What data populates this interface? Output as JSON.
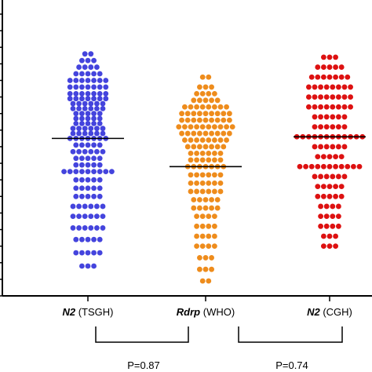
{
  "chart_data": {
    "type": "scatter",
    "subtype": "swarm",
    "title": "",
    "xlabel": "",
    "ylabel": "",
    "categories": [
      {
        "gene": "N2",
        "suffix": " (TSGH)",
        "color": "#4444dd"
      },
      {
        "gene": "Rdrp",
        "suffix": " (WHO)",
        "color": "#ee8c1c"
      },
      {
        "gene": "N2",
        "suffix": " (CGH)",
        "color": "#dd1111"
      }
    ],
    "ylim": [
      0,
      17
    ],
    "y_tick_count": 17,
    "series": [
      {
        "category": 0,
        "median": 9.5,
        "values": [
          1.8,
          2.6,
          3.4,
          4.1,
          4.8,
          5.4,
          6.0,
          6.5,
          7.0,
          7.5,
          7.9,
          8.3,
          8.7,
          9.1,
          9.5,
          9.8,
          10.1,
          10.4,
          10.7,
          11.0,
          11.3,
          11.6,
          11.9,
          12.2,
          12.6,
          13.0,
          13.4,
          13.8,
          14.2,
          14.6
        ],
        "counts": [
          3,
          5,
          5,
          6,
          6,
          6,
          5,
          5,
          5,
          9,
          5,
          5,
          6,
          5,
          7,
          6,
          6,
          5,
          5,
          5,
          6,
          6,
          7,
          7,
          7,
          7,
          5,
          4,
          3,
          2
        ]
      },
      {
        "category": 1,
        "median": 7.8,
        "values": [
          0.9,
          1.6,
          2.3,
          3.0,
          3.6,
          4.2,
          4.8,
          5.3,
          5.8,
          6.3,
          6.8,
          7.3,
          7.8,
          8.2,
          8.6,
          9.0,
          9.4,
          9.8,
          10.2,
          10.6,
          11.0,
          11.4,
          11.8,
          12.2,
          12.6,
          13.2
        ],
        "counts": [
          2,
          3,
          3,
          4,
          4,
          4,
          4,
          5,
          5,
          6,
          6,
          6,
          7,
          6,
          6,
          7,
          8,
          9,
          10,
          9,
          9,
          8,
          5,
          4,
          3,
          2
        ]
      },
      {
        "category": 2,
        "median": 9.6,
        "values": [
          3.0,
          3.6,
          4.2,
          4.8,
          5.4,
          6.0,
          6.6,
          7.2,
          7.8,
          8.4,
          9.0,
          9.6,
          10.2,
          10.8,
          11.4,
          12.0,
          12.6,
          13.2,
          13.8,
          14.4
        ],
        "counts": [
          3,
          3,
          4,
          4,
          4,
          5,
          5,
          6,
          11,
          5,
          6,
          12,
          6,
          6,
          8,
          8,
          8,
          7,
          5,
          3
        ]
      }
    ],
    "comparisons": [
      {
        "from": 0,
        "to": 1,
        "label": "P=0.87"
      },
      {
        "from": 1,
        "to": 2,
        "label": "P=0.74"
      }
    ]
  }
}
